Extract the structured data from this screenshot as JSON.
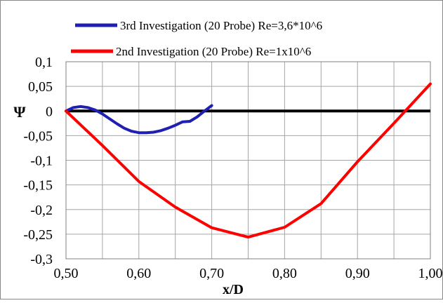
{
  "chart_data": {
    "type": "line",
    "title": "",
    "xlabel": "x/D",
    "ylabel": "Ψ",
    "xlim": [
      0.5,
      1.0
    ],
    "ylim": [
      -0.3,
      0.1
    ],
    "x_ticks": [
      0.5,
      0.55,
      0.6,
      0.65,
      0.7,
      0.75,
      0.8,
      0.85,
      0.9,
      0.95,
      1.0
    ],
    "x_tick_labels": [
      {
        "value": 0.5,
        "label": "0,50"
      },
      {
        "value": 0.6,
        "label": "0,60"
      },
      {
        "value": 0.7,
        "label": "0,70"
      },
      {
        "value": 0.8,
        "label": "0,80"
      },
      {
        "value": 0.9,
        "label": "0,90"
      },
      {
        "value": 1.0,
        "label": "1,00"
      }
    ],
    "y_ticks": [
      {
        "value": 0.1,
        "label": "0,1"
      },
      {
        "value": 0.05,
        "label": "0,05"
      },
      {
        "value": 0,
        "label": "0"
      },
      {
        "value": -0.05,
        "label": "-0,05"
      },
      {
        "value": -0.1,
        "label": "-0,1"
      },
      {
        "value": -0.15,
        "label": "-0,15"
      },
      {
        "value": -0.2,
        "label": "-0,2"
      },
      {
        "value": -0.25,
        "label": "-0,25"
      },
      {
        "value": -0.3,
        "label": "-0,3"
      }
    ],
    "grid": true,
    "legend_position": "top",
    "zero_line": {
      "y": 0,
      "color": "#000000"
    },
    "series": [
      {
        "name": "3rd Investigation (20 Probe) Re=3,6*10^6",
        "color": "#1f1fb4",
        "points": [
          [
            0.5,
            0.0
          ],
          [
            0.51,
            0.007
          ],
          [
            0.52,
            0.009
          ],
          [
            0.53,
            0.007
          ],
          [
            0.54,
            0.002
          ],
          [
            0.55,
            -0.006
          ],
          [
            0.56,
            -0.016
          ],
          [
            0.57,
            -0.026
          ],
          [
            0.58,
            -0.035
          ],
          [
            0.59,
            -0.041
          ],
          [
            0.6,
            -0.044
          ],
          [
            0.61,
            -0.044
          ],
          [
            0.62,
            -0.043
          ],
          [
            0.63,
            -0.04
          ],
          [
            0.64,
            -0.035
          ],
          [
            0.65,
            -0.029
          ],
          [
            0.66,
            -0.022
          ],
          [
            0.67,
            -0.021
          ],
          [
            0.68,
            -0.012
          ],
          [
            0.69,
            0.0
          ],
          [
            0.7,
            0.011
          ]
        ]
      },
      {
        "name": "2nd Investigation (20 Probe) Re=1x10^6",
        "color": "#ff0000",
        "points": [
          [
            0.5,
            0.0
          ],
          [
            0.55,
            -0.07
          ],
          [
            0.6,
            -0.143
          ],
          [
            0.65,
            -0.195
          ],
          [
            0.7,
            -0.237
          ],
          [
            0.75,
            -0.256
          ],
          [
            0.8,
            -0.236
          ],
          [
            0.85,
            -0.188
          ],
          [
            0.9,
            -0.103
          ],
          [
            0.95,
            -0.025
          ],
          [
            1.0,
            0.055
          ]
        ]
      }
    ]
  }
}
